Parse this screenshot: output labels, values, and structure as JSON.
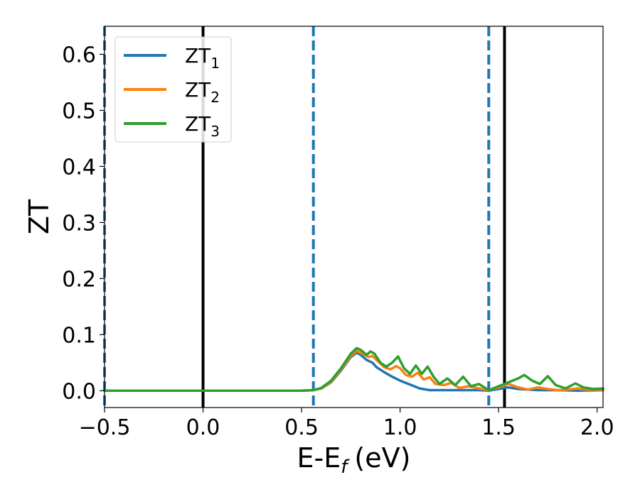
{
  "chart_data": {
    "type": "line",
    "xlabel": "E-E",
    "xlabel_sub": "f",
    "xlabel_unit": "(eV)",
    "ylabel": "ZT",
    "xlim": [
      -0.5,
      2.03
    ],
    "ylim": [
      -0.03,
      0.65
    ],
    "xticks": [
      -0.5,
      0.0,
      0.5,
      1.0,
      1.5,
      2.0
    ],
    "xtick_labels": [
      "−0.5",
      "0.0",
      "0.5",
      "1.0",
      "1.5",
      "2.0"
    ],
    "yticks": [
      0.0,
      0.1,
      0.2,
      0.3,
      0.4,
      0.5,
      0.6
    ],
    "ytick_labels": [
      "0.0",
      "0.1",
      "0.2",
      "0.3",
      "0.4",
      "0.5",
      "0.6"
    ],
    "legend_position": "top-left",
    "vlines": [
      {
        "x": 0.0,
        "color": "#000000",
        "style": "solid"
      },
      {
        "x": 1.53,
        "color": "#000000",
        "style": "solid"
      },
      {
        "x": -0.5,
        "color": "#1f77b4",
        "style": "dashed"
      },
      {
        "x": 0.56,
        "color": "#1f77b4",
        "style": "dashed"
      },
      {
        "x": 1.45,
        "color": "#1f77b4",
        "style": "dashed"
      }
    ],
    "series": [
      {
        "name": "ZT",
        "sub": "1",
        "color": "#1f77b4",
        "points": [
          [
            -0.5,
            0
          ],
          [
            0.5,
            0
          ],
          [
            0.56,
            0.001
          ],
          [
            0.6,
            0.004
          ],
          [
            0.65,
            0.015
          ],
          [
            0.7,
            0.036
          ],
          [
            0.75,
            0.06
          ],
          [
            0.78,
            0.068
          ],
          [
            0.8,
            0.064
          ],
          [
            0.83,
            0.055
          ],
          [
            0.86,
            0.05
          ],
          [
            0.88,
            0.042
          ],
          [
            0.92,
            0.033
          ],
          [
            0.96,
            0.025
          ],
          [
            1.0,
            0.018
          ],
          [
            1.05,
            0.011
          ],
          [
            1.1,
            0.004
          ],
          [
            1.15,
            0.001
          ],
          [
            1.2,
            0.001
          ],
          [
            1.3,
            0.001
          ],
          [
            1.4,
            0.001
          ],
          [
            1.45,
            0
          ],
          [
            1.5,
            0.003
          ],
          [
            1.55,
            0.006
          ],
          [
            1.6,
            0.003
          ],
          [
            1.7,
            0.001
          ],
          [
            1.8,
            0.001
          ],
          [
            1.9,
            0
          ],
          [
            2.03,
            0.001
          ]
        ]
      },
      {
        "name": "ZT",
        "sub": "2",
        "color": "#ff7f0e",
        "points": [
          [
            -0.5,
            0
          ],
          [
            0.5,
            0
          ],
          [
            0.56,
            0.001
          ],
          [
            0.6,
            0.004
          ],
          [
            0.65,
            0.016
          ],
          [
            0.7,
            0.038
          ],
          [
            0.75,
            0.062
          ],
          [
            0.78,
            0.071
          ],
          [
            0.81,
            0.066
          ],
          [
            0.84,
            0.06
          ],
          [
            0.86,
            0.062
          ],
          [
            0.88,
            0.055
          ],
          [
            0.92,
            0.042
          ],
          [
            0.95,
            0.038
          ],
          [
            0.98,
            0.044
          ],
          [
            1.0,
            0.04
          ],
          [
            1.03,
            0.028
          ],
          [
            1.06,
            0.025
          ],
          [
            1.09,
            0.032
          ],
          [
            1.12,
            0.02
          ],
          [
            1.15,
            0.024
          ],
          [
            1.18,
            0.012
          ],
          [
            1.22,
            0.01
          ],
          [
            1.26,
            0.014
          ],
          [
            1.3,
            0.005
          ],
          [
            1.35,
            0.008
          ],
          [
            1.4,
            0.004
          ],
          [
            1.45,
            0.001
          ],
          [
            1.5,
            0.006
          ],
          [
            1.55,
            0.012
          ],
          [
            1.6,
            0.006
          ],
          [
            1.65,
            0.002
          ],
          [
            1.7,
            0.006
          ],
          [
            1.75,
            0.003
          ],
          [
            1.8,
            0.001
          ],
          [
            1.85,
            0.002
          ],
          [
            1.9,
            0.004
          ],
          [
            1.95,
            0.002
          ],
          [
            2.03,
            0.002
          ]
        ]
      },
      {
        "name": "ZT",
        "sub": "3",
        "color": "#2ca02c",
        "points": [
          [
            -0.5,
            0
          ],
          [
            0.5,
            0
          ],
          [
            0.56,
            0.001
          ],
          [
            0.6,
            0.005
          ],
          [
            0.65,
            0.018
          ],
          [
            0.7,
            0.04
          ],
          [
            0.75,
            0.066
          ],
          [
            0.78,
            0.076
          ],
          [
            0.8,
            0.073
          ],
          [
            0.83,
            0.064
          ],
          [
            0.85,
            0.07
          ],
          [
            0.87,
            0.066
          ],
          [
            0.9,
            0.05
          ],
          [
            0.93,
            0.043
          ],
          [
            0.96,
            0.05
          ],
          [
            0.99,
            0.061
          ],
          [
            1.02,
            0.04
          ],
          [
            1.05,
            0.03
          ],
          [
            1.08,
            0.045
          ],
          [
            1.11,
            0.03
          ],
          [
            1.14,
            0.043
          ],
          [
            1.17,
            0.025
          ],
          [
            1.2,
            0.012
          ],
          [
            1.24,
            0.022
          ],
          [
            1.28,
            0.01
          ],
          [
            1.32,
            0.025
          ],
          [
            1.36,
            0.008
          ],
          [
            1.4,
            0.012
          ],
          [
            1.45,
            0.001
          ],
          [
            1.5,
            0.008
          ],
          [
            1.55,
            0.015
          ],
          [
            1.6,
            0.022
          ],
          [
            1.63,
            0.028
          ],
          [
            1.67,
            0.018
          ],
          [
            1.71,
            0.012
          ],
          [
            1.75,
            0.026
          ],
          [
            1.79,
            0.01
          ],
          [
            1.84,
            0.004
          ],
          [
            1.89,
            0.013
          ],
          [
            1.93,
            0.006
          ],
          [
            1.98,
            0.003
          ],
          [
            2.03,
            0.004
          ]
        ]
      }
    ]
  }
}
